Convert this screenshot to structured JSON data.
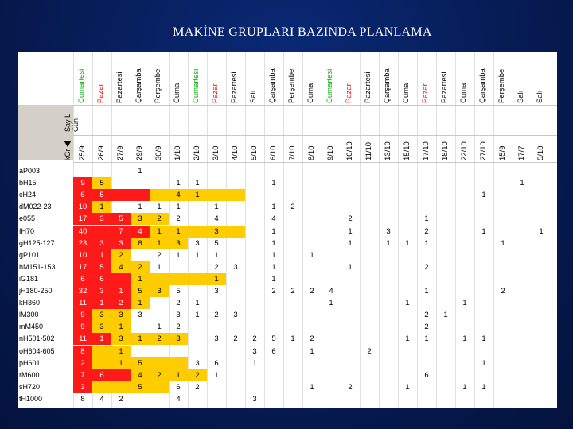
{
  "slide": {
    "title": "MAKİNE GRUPLARI BAZINDA PLANLAMA"
  },
  "sheet": {
    "corner_labels": [
      "Say L",
      "Gün",
      "kGr"
    ],
    "columns": [
      {
        "day": "Cumartesi",
        "date": "25/9",
        "color": "#00aa00"
      },
      {
        "day": "Pazar",
        "date": "26/9",
        "color": "#ff0000"
      },
      {
        "day": "Pazartesi",
        "date": "27/9",
        "color": "#000000"
      },
      {
        "day": "Çarşamba",
        "date": "29/9",
        "color": "#000000"
      },
      {
        "day": "Perşembe",
        "date": "30/9",
        "color": "#000000"
      },
      {
        "day": "Cuma",
        "date": "1/10",
        "color": "#000000"
      },
      {
        "day": "Cumartesi",
        "date": "2/10",
        "color": "#00aa00"
      },
      {
        "day": "Pazar",
        "date": "3/10",
        "color": "#ff0000"
      },
      {
        "day": "Pazartesi",
        "date": "4/10",
        "color": "#000000"
      },
      {
        "day": "Salı",
        "date": "5/10",
        "color": "#000000"
      },
      {
        "day": "Çarşamba",
        "date": "6/10",
        "color": "#000000"
      },
      {
        "day": "Perşembe",
        "date": "7/10",
        "color": "#000000"
      },
      {
        "day": "Cuma",
        "date": "8/10",
        "color": "#000000"
      },
      {
        "day": "Cumartesi",
        "date": "9/10",
        "color": "#00aa00"
      },
      {
        "day": "Pazar",
        "date": "10/10",
        "color": "#ff0000"
      },
      {
        "day": "Pazartesi",
        "date": "11/10",
        "color": "#000000"
      },
      {
        "day": "Çarşamba",
        "date": "13/10",
        "color": "#000000"
      },
      {
        "day": "Cuma",
        "date": "15/10",
        "color": "#000000"
      },
      {
        "day": "Pazar",
        "date": "17/10",
        "color": "#ff0000"
      },
      {
        "day": "Pazartesi",
        "date": "18/10",
        "color": "#000000"
      },
      {
        "day": "Cuma",
        "date": "22/10",
        "color": "#000000"
      },
      {
        "day": "Çarşamba",
        "date": "27/10",
        "color": "#000000"
      },
      {
        "day": "Perşembe",
        "date": "15/9",
        "color": "#000000"
      },
      {
        "day": "Salı",
        "date": "17/7",
        "color": "#000000"
      },
      {
        "day": "Salı",
        "date": "5/10",
        "color": "#000000"
      }
    ],
    "rows": [
      {
        "label": "aP003",
        "red": 0,
        "yellow": 0,
        "cells": {
          "3": "1"
        }
      },
      {
        "label": "bH15",
        "red": 1,
        "yellow": 1,
        "cells": {
          "0": "9",
          "1": "5",
          "5": "1",
          "6": "1",
          "10": "1",
          "23": "1"
        }
      },
      {
        "label": "cH24",
        "red": 4,
        "yellow": 5,
        "cells": {
          "0": "6",
          "1": "5",
          "5": "4",
          "6": "1",
          "21": "1"
        }
      },
      {
        "label": "dM022-23",
        "red": 1,
        "yellow": 1,
        "cells": {
          "0": "10",
          "1": "1",
          "3": "1",
          "4": "1",
          "5": "1",
          "7": "1",
          "10": "1",
          "11": "2"
        }
      },
      {
        "label": "e055",
        "red": 3,
        "yellow": 2,
        "cells": {
          "0": "17",
          "1": "3",
          "2": "5",
          "3": "3",
          "4": "2",
          "5": "2",
          "7": "4",
          "10": "4",
          "14": "2",
          "18": "1"
        }
      },
      {
        "label": "fH70",
        "red": 4,
        "yellow": 5,
        "cells": {
          "0": "40",
          "2": "7",
          "3": "4",
          "4": "1",
          "5": "1",
          "7": "3",
          "10": "1",
          "14": "1",
          "16": "3",
          "18": "2",
          "21": "1",
          "24": "1"
        }
      },
      {
        "label": "gH125-127",
        "red": 3,
        "yellow": 3,
        "cells": {
          "0": "23",
          "1": "3",
          "2": "3",
          "3": "8",
          "4": "1",
          "5": "3",
          "6": "3",
          "7": "5",
          "10": "1",
          "14": "1",
          "16": "1",
          "17": "1",
          "18": "1",
          "22": "1"
        }
      },
      {
        "label": "gP101",
        "red": 2,
        "yellow": 1,
        "cells": {
          "0": "10",
          "1": "1",
          "2": "2",
          "4": "2",
          "5": "1",
          "6": "1",
          "7": "1",
          "10": "1",
          "12": "1"
        }
      },
      {
        "label": "hM151-153",
        "red": 2,
        "yellow": 2,
        "cells": {
          "0": "17",
          "1": "5",
          "2": "4",
          "3": "2",
          "4": "1",
          "7": "2",
          "8": "3",
          "10": "1",
          "14": "1",
          "18": "2"
        }
      },
      {
        "label": "iG181",
        "red": 3,
        "yellow": 5,
        "cells": {
          "0": "6",
          "1": "6",
          "3": "1",
          "7": "1",
          "10": "1"
        }
      },
      {
        "label": "jH180-250",
        "red": 3,
        "yellow": 2,
        "cells": {
          "0": "32",
          "1": "3",
          "2": "1",
          "3": "5",
          "4": "3",
          "5": "5",
          "7": "3",
          "10": "2",
          "11": "2",
          "12": "2",
          "13": "4",
          "18": "1",
          "22": "2"
        }
      },
      {
        "label": "kH360",
        "red": 3,
        "yellow": 1,
        "cells": {
          "0": "11",
          "1": "1",
          "2": "2",
          "3": "1",
          "5": "2",
          "6": "1",
          "13": "1",
          "17": "1",
          "20": "1"
        }
      },
      {
        "label": "lM300",
        "red": 1,
        "yellow": 2,
        "cells": {
          "0": "9",
          "1": "3",
          "2": "3",
          "3": "3",
          "5": "3",
          "6": "1",
          "7": "2",
          "8": "3",
          "18": "2",
          "19": "1"
        }
      },
      {
        "label": "mM450",
        "red": 1,
        "yellow": 2,
        "cells": {
          "0": "9",
          "1": "3",
          "2": "1",
          "4": "1",
          "5": "2",
          "18": "2"
        }
      },
      {
        "label": "nH501-502",
        "red": 2,
        "yellow": 4,
        "cells": {
          "0": "11",
          "1": "1",
          "2": "3",
          "3": "1",
          "4": "2",
          "5": "3",
          "7": "3",
          "8": "2",
          "9": "2",
          "10": "5",
          "11": "1",
          "12": "2",
          "17": "1",
          "18": "1",
          "20": "1",
          "21": "1"
        }
      },
      {
        "label": "oH604-605",
        "red": 1,
        "yellow": 2,
        "cells": {
          "0": "8",
          "2": "1",
          "9": "3",
          "10": "6",
          "12": "1",
          "15": "2"
        }
      },
      {
        "label": "pH601",
        "red": 1,
        "yellow": 5,
        "cells": {
          "0": "2",
          "2": "1",
          "3": "5",
          "6": "3",
          "7": "6",
          "9": "1",
          "21": "1"
        }
      },
      {
        "label": "rM600",
        "red": 3,
        "yellow": 4,
        "cells": {
          "0": "7",
          "1": "6",
          "3": "4",
          "4": "2",
          "5": "1",
          "6": "2",
          "7": "1",
          "18": "6"
        }
      },
      {
        "label": "sH720",
        "red": 1,
        "yellow": 4,
        "cells": {
          "0": "3",
          "3": "5",
          "5": "6",
          "6": "2",
          "12": "1",
          "14": "2",
          "17": "1",
          "20": "1",
          "21": "1"
        }
      },
      {
        "label": "tH1000",
        "red": 0,
        "yellow": 0,
        "cells": {
          "0": "8",
          "1": "4",
          "2": "2",
          "5": "4",
          "9": "3"
        }
      }
    ]
  }
}
